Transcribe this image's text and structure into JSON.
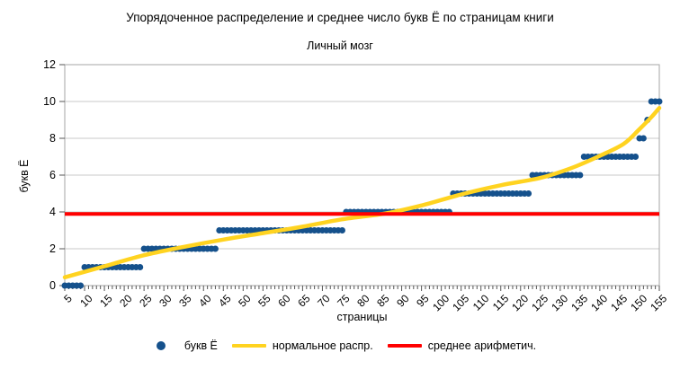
{
  "chart_data": {
    "type": "scatter",
    "title": "Упорядоченное распределение и среднее число букв Ё по страницам книги",
    "subtitle": "Личный мозг",
    "xlabel": "страницы",
    "ylabel": "букв Ё",
    "xlim": [
      5,
      155
    ],
    "ylim": [
      0,
      12
    ],
    "y_ticks": [
      0,
      2,
      4,
      6,
      8,
      10,
      12
    ],
    "x_ticks": [
      5,
      10,
      15,
      20,
      25,
      30,
      35,
      40,
      45,
      50,
      55,
      60,
      65,
      70,
      75,
      80,
      85,
      90,
      95,
      100,
      105,
      110,
      115,
      120,
      125,
      130,
      135,
      140,
      145,
      150,
      155
    ],
    "grid": "horizontal",
    "legend_position": "bottom",
    "series": [
      {
        "name": "букв Ё",
        "type": "scatter",
        "color": "#15518c",
        "note": "sorted per-page counts of letter Ё, one dot per page",
        "steps": [
          {
            "value": 0,
            "from_page": 5,
            "to_page": 9
          },
          {
            "value": 1,
            "from_page": 10,
            "to_page": 24
          },
          {
            "value": 2,
            "from_page": 25,
            "to_page": 43
          },
          {
            "value": 3,
            "from_page": 44,
            "to_page": 75
          },
          {
            "value": 4,
            "from_page": 76,
            "to_page": 102
          },
          {
            "value": 5,
            "from_page": 103,
            "to_page": 122
          },
          {
            "value": 6,
            "from_page": 123,
            "to_page": 135
          },
          {
            "value": 7,
            "from_page": 136,
            "to_page": 149
          },
          {
            "value": 8,
            "from_page": 150,
            "to_page": 151
          },
          {
            "value": 9,
            "from_page": 152,
            "to_page": 152
          },
          {
            "value": 10,
            "from_page": 153,
            "to_page": 155
          }
        ]
      },
      {
        "name": "нормальное распр.",
        "type": "line",
        "color": "#ffd320",
        "points": [
          [
            5,
            0.45
          ],
          [
            15,
            1.05
          ],
          [
            25,
            1.65
          ],
          [
            35,
            2.1
          ],
          [
            45,
            2.5
          ],
          [
            55,
            2.85
          ],
          [
            65,
            3.2
          ],
          [
            75,
            3.6
          ],
          [
            86,
            3.92
          ],
          [
            95,
            4.35
          ],
          [
            105,
            4.95
          ],
          [
            115,
            5.45
          ],
          [
            125,
            5.85
          ],
          [
            133,
            6.4
          ],
          [
            140,
            7.05
          ],
          [
            146,
            7.7
          ],
          [
            150,
            8.5
          ],
          [
            153,
            9.15
          ],
          [
            155,
            9.65
          ]
        ]
      },
      {
        "name": "среднее арифметич.",
        "type": "hline",
        "color": "#ff0000",
        "value": 3.89
      }
    ]
  },
  "style_colors": {
    "grid": "#c9c9c9",
    "plot_border": "#a6a6a6",
    "tick": "#555555",
    "text": "#000000"
  }
}
